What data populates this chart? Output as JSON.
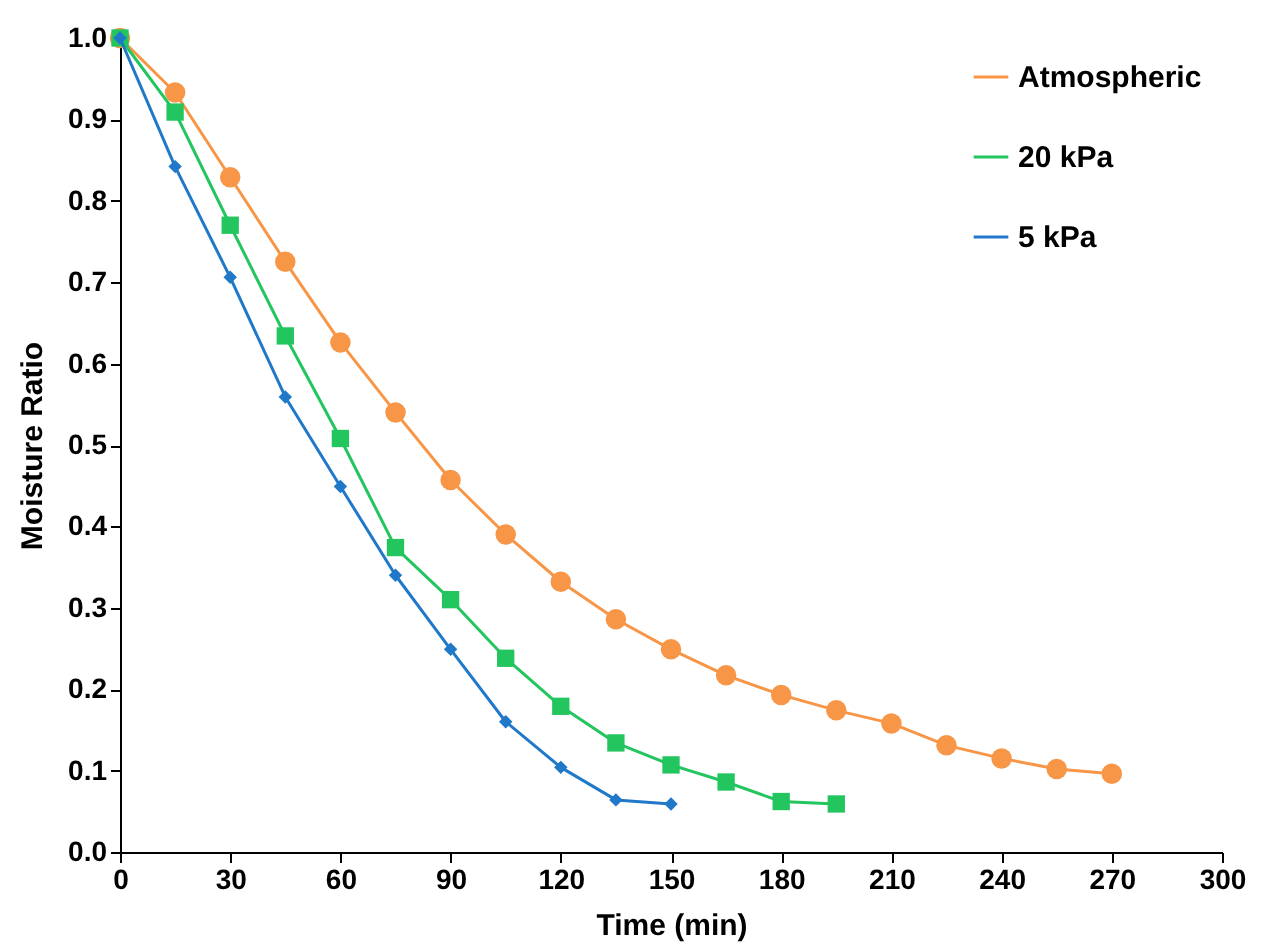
{
  "chart_data": {
    "type": "line",
    "xlabel": "Time (min)",
    "ylabel": "Moisture Ratio",
    "xlim": [
      0,
      300
    ],
    "xticks": [
      0,
      30,
      60,
      90,
      120,
      150,
      180,
      210,
      240,
      270,
      300
    ],
    "ylim": [
      0,
      1
    ],
    "yticks": [
      {
        "value": 0,
        "label": "0.0"
      },
      0.1,
      0.2,
      0.3,
      0.4,
      0.5,
      0.6,
      0.7,
      0.8,
      0.9,
      {
        "value": 1,
        "label": "1.0"
      }
    ],
    "grid": false,
    "legend": "top right",
    "series": [
      {
        "name": "Atmospheric",
        "color": "#f79646",
        "marker": "circle",
        "x": [
          0,
          15,
          30,
          45,
          60,
          75,
          90,
          105,
          120,
          135,
          150,
          165,
          180,
          195,
          210,
          225,
          240,
          255,
          270
        ],
        "values": [
          1.0,
          0.933,
          0.829,
          0.725,
          0.626,
          0.54,
          0.457,
          0.39,
          0.332,
          0.286,
          0.249,
          0.217,
          0.193,
          0.174,
          0.158,
          0.131,
          0.115,
          0.102,
          0.096
        ]
      },
      {
        "name": "20 kPa",
        "color": "#22c55e",
        "marker": "square",
        "x": [
          0,
          15,
          30,
          45,
          60,
          75,
          90,
          105,
          120,
          135,
          150,
          165,
          180,
          195
        ],
        "values": [
          1.0,
          0.909,
          0.77,
          0.634,
          0.508,
          0.374,
          0.31,
          0.238,
          0.179,
          0.134,
          0.107,
          0.086,
          0.062,
          0.059
        ]
      },
      {
        "name": "5 kPa",
        "color": "#1f78c8",
        "marker": "diamond",
        "x": [
          0,
          15,
          30,
          45,
          60,
          75,
          90,
          105,
          120,
          135,
          150
        ],
        "values": [
          1.0,
          0.842,
          0.706,
          0.559,
          0.449,
          0.34,
          0.249,
          0.16,
          0.104,
          0.064,
          0.059
        ]
      }
    ]
  }
}
